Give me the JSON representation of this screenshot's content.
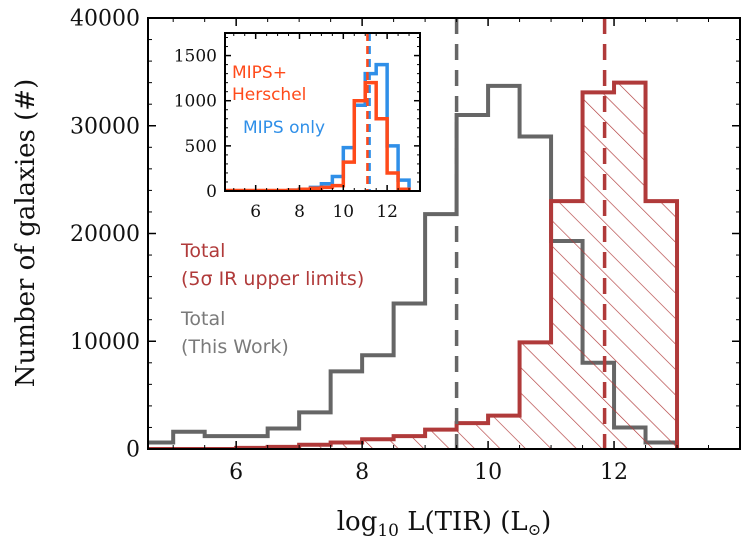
{
  "chart_data": [
    {
      "type": "histogram",
      "id": "main",
      "xlabel": "log10 L(TIR) (L⊙)",
      "xlabel_parts": {
        "base": "log",
        "sub": "10",
        "rest": " L(TIR) (L",
        "sun": "⊙",
        "close": ")"
      },
      "ylabel": "Number of galaxies (#)",
      "xlim": [
        4.6,
        14.0
      ],
      "ylim": [
        0,
        40000
      ],
      "xticks": [
        6,
        8,
        10,
        12
      ],
      "yticks": [
        0,
        10000,
        20000,
        30000,
        40000
      ],
      "bin_edges": [
        4.5,
        5.0,
        5.5,
        6.0,
        6.5,
        7.0,
        7.5,
        8.0,
        8.5,
        9.0,
        9.5,
        10.0,
        10.5,
        11.0,
        11.5,
        12.0,
        12.5,
        13.0
      ],
      "series": [
        {
          "name": "Total (This Work)",
          "color": "#666666",
          "hatched": false,
          "counts": [
            600,
            1600,
            1200,
            1200,
            1900,
            3400,
            7200,
            8700,
            13500,
            21800,
            31000,
            33700,
            29000,
            19300,
            8000,
            2000,
            600
          ],
          "median": 9.5
        },
        {
          "name": "Total (5σ IR upper limits)",
          "color": "#b03a3a",
          "hatched": true,
          "counts": [
            0,
            0,
            0,
            100,
            200,
            400,
            600,
            900,
            1200,
            1800,
            2400,
            3100,
            9900,
            23000,
            33100,
            34000,
            23000
          ],
          "median": 11.85
        }
      ],
      "legend": [
        {
          "lines": [
            "Total",
            "(5σ IR upper limits)"
          ],
          "color": "#b03a3a"
        },
        {
          "lines": [
            "Total",
            "(This Work)"
          ],
          "color": "#7a7a7a"
        }
      ]
    },
    {
      "type": "histogram",
      "id": "inset",
      "xlim": [
        4.6,
        13.5
      ],
      "ylim": [
        0,
        1750
      ],
      "xticks": [
        6,
        8,
        10,
        12
      ],
      "yticks": [
        0,
        500,
        1000,
        1500
      ],
      "bin_edges": [
        4.5,
        5.0,
        5.5,
        6.0,
        6.5,
        7.0,
        7.5,
        8.0,
        8.5,
        9.0,
        9.5,
        10.0,
        10.5,
        11.0,
        11.5,
        12.0,
        12.5,
        13.0
      ],
      "series": [
        {
          "name": "MIPS only",
          "color": "#2f8fe8",
          "counts": [
            0,
            0,
            0,
            0,
            0,
            0,
            10,
            20,
            40,
            80,
            160,
            480,
            950,
            1300,
            1400,
            500,
            120
          ],
          "median": 11.2
        },
        {
          "name": "MIPS+Herschel",
          "color": "#ff4a1a",
          "counts": [
            5,
            5,
            5,
            5,
            5,
            5,
            10,
            20,
            30,
            40,
            60,
            320,
            1000,
            1200,
            800,
            200,
            20
          ],
          "median": 11.1
        }
      ],
      "legend": [
        {
          "lines": [
            "MIPS+",
            "Herschel"
          ],
          "color": "#ff4a1a"
        },
        {
          "lines": [
            "MIPS only"
          ],
          "color": "#2f8fe8"
        }
      ]
    }
  ]
}
